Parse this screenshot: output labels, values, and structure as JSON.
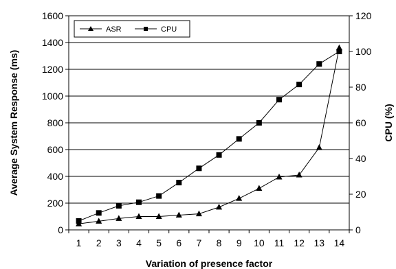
{
  "chart_data": {
    "type": "line",
    "x": [
      1,
      2,
      3,
      4,
      5,
      6,
      7,
      8,
      9,
      10,
      11,
      12,
      13,
      14
    ],
    "xlabel": "Variation of presence factor",
    "ylabel": "Average System Response (ms)",
    "y2label": "CPU (%)",
    "ylim": [
      0,
      1600
    ],
    "y2lim": [
      0,
      120
    ],
    "yticks": [
      "0",
      "200",
      "400",
      "600",
      "800",
      "1000",
      "1200",
      "1400",
      "1600"
    ],
    "y2ticks": [
      "0",
      "20",
      "40",
      "60",
      "80",
      "100",
      "120"
    ],
    "xticks": [
      "1",
      "2",
      "3",
      "4",
      "5",
      "6",
      "7",
      "8",
      "9",
      "10",
      "11",
      "12",
      "13",
      "14"
    ],
    "grid": "horizontal",
    "legend_position": "top-left",
    "series": [
      {
        "name": "ASR",
        "axis": "left",
        "marker": "triangle",
        "values": [
          45,
          65,
          85,
          100,
          100,
          110,
          120,
          170,
          235,
          310,
          395,
          410,
          615,
          1360
        ]
      },
      {
        "name": "CPU",
        "axis": "right",
        "marker": "square",
        "values": [
          5,
          9.5,
          13.5,
          15.5,
          19,
          26.5,
          34.5,
          42,
          51,
          60,
          73,
          81.5,
          93,
          100
        ]
      }
    ]
  }
}
